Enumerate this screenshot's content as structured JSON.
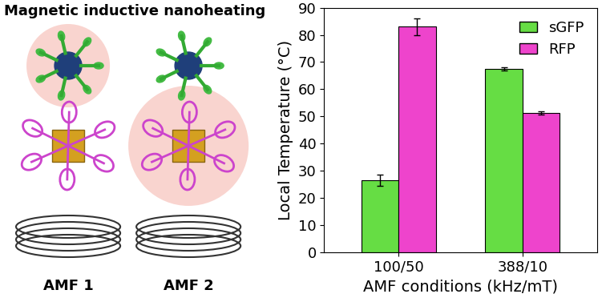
{
  "chart_data": {
    "type": "bar",
    "categories": [
      "100/50",
      "388/10"
    ],
    "series": [
      {
        "name": "sGFP",
        "color": "#66dd44",
        "values": [
          26.5,
          67.5
        ],
        "errors": [
          2.0,
          0.7
        ]
      },
      {
        "name": "RFP",
        "color": "#ee44cc",
        "values": [
          83.0,
          51.3
        ],
        "errors": [
          3.0,
          0.7
        ]
      }
    ],
    "x_label": "AMF conditions (kHz/mT)",
    "y_label": "Local Temperature (°C)",
    "ylim": [
      0,
      90
    ],
    "yticks": [
      0,
      10,
      20,
      30,
      40,
      50,
      60,
      70,
      80,
      90
    ],
    "legend": "upper right",
    "grid": false
  },
  "diagram": {
    "title": "Magnetic inductive nanoheating",
    "labels": [
      "AMF 1",
      "AMF 2"
    ]
  }
}
